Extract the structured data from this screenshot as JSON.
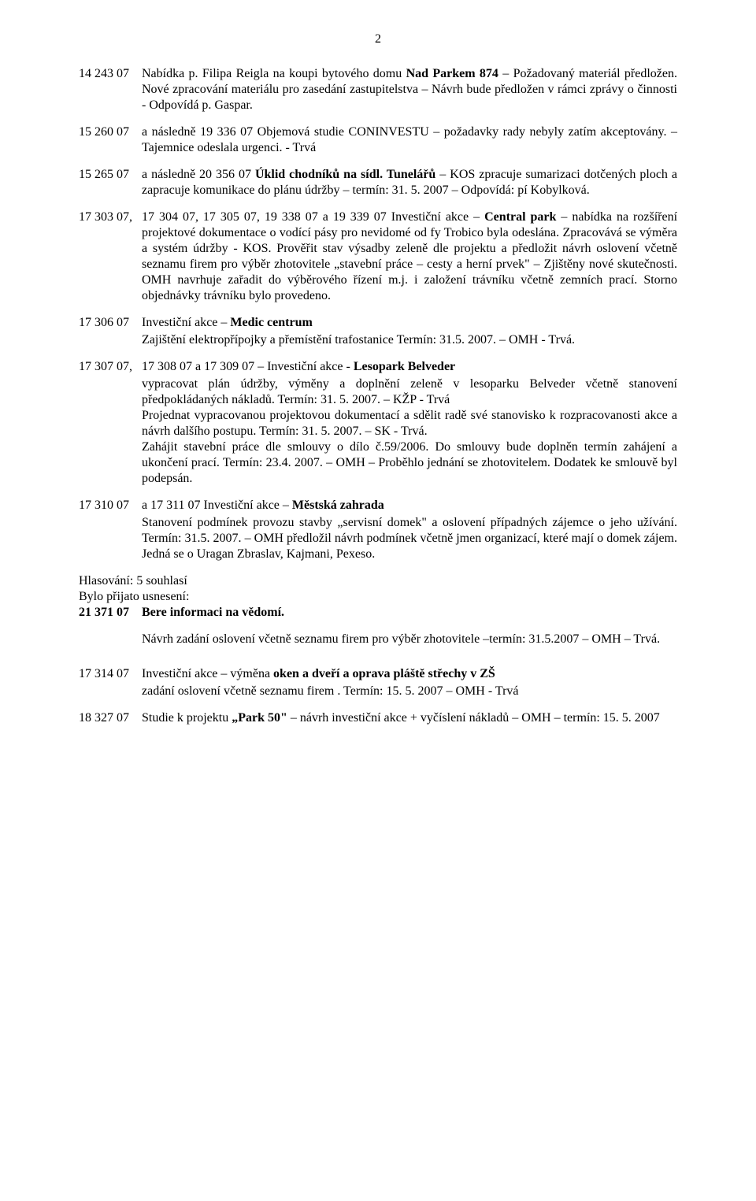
{
  "page_number": "2",
  "entries": [
    {
      "code": "14 243 07",
      "body": "Nabídka p. Filipa Reigla na koupi bytového domu <strong>Nad Parkem 874</strong> – Požadovaný materiál předložen. Nové zpracování materiálu pro zasedání zastupitelstva – Návrh bude předložen v rámci zprávy o činnosti - Odpovídá p. Gaspar."
    },
    {
      "code": "15 260 07",
      "body": "a následně 19 336 07 Objemová studie CONINVESTU – požadavky rady nebyly zatím akceptovány. – Tajemnice odeslala urgenci. - Trvá"
    },
    {
      "code": "15 265 07",
      "body": "a následně 20 356 07 <strong>Úklid chodníků na sídl. Tunelářů</strong> – KOS zpracuje sumarizaci dotčených ploch a zapracuje komunikace do plánu údržby – termín: 31. 5. 2007 – Odpovídá: pí Kobylková."
    },
    {
      "code": "17 303 07,",
      "body": "17 304 07, 17 305 07, 19 338 07 a 19 339 07 Investiční akce – <strong>Central park</strong> – nabídka na rozšíření projektové dokumentace o vodící pásy pro nevidomé od fy Trobico byla odeslána. Zpracovává se výměra a systém údržby - KOS. Prověřit stav výsadby zeleně dle projektu a předložit návrh oslovení včetně seznamu firem pro výběr zhotovitele „stavební práce – cesty a herní prvek\" – Zjištěny nové skutečnosti. OMH navrhuje zařadit do  výběrového řízení m.j. i založení trávníku včetně zemních prací. Storno objednávky trávníku bylo provedeno."
    },
    {
      "code": "17 306 07",
      "body": "Investiční akce – <strong>Medic centrum</strong>",
      "sub": "Zajištění elektropřípojky a přemístění trafostanice Termín: 31.5. 2007. – OMH - Trvá."
    },
    {
      "code": "17 307 07,",
      "body": "17 308 07 a 17 309 07 – Investiční akce -  <strong>Lesopark Belveder</strong>",
      "sub": "vypracovat plán údržby, výměny a doplnění zeleně v lesoparku Belveder včetně stanovení předpokládaných nákladů. Termín: 31. 5. 2007. – KŽP - Trvá<br>Projednat vypracovanou projektovou dokumentací a sdělit radě své stanovisko k rozpracovanosti akce a návrh dalšího postupu. Termín: 31. 5. 2007. – SK - Trvá.<br>Zahájit stavební práce dle smlouvy o dílo č.59/2006. Do smlouvy bude doplněn termín zahájení a ukončení prací.  Termín: 23.4. 2007. – OMH – Proběhlo jednání se zhotovitelem. Dodatek ke smlouvě byl podepsán."
    },
    {
      "code": "17 310 07",
      "body": " a 17 311 07  Investiční akce – <strong>Městská zahrada</strong>",
      "sub": "Stanovení podmínek provozu  stavby „servisní domek\" a oslovení případných zájemce o jeho užívání. Termín: 31.5. 2007. – OMH předložil návrh podmínek včetně jmen organizací, které mají o domek zájem. Jedná se o Uragan Zbraslav, Kajmani, Pexeso."
    }
  ],
  "vote_line": "Hlasování: 5 souhlasí",
  "adopted_line": "Bylo přijato usnesení:",
  "resolution": {
    "code": "21 371 07",
    "body": "Bere informaci na vědomí."
  },
  "resolution_sub": "Návrh zadání oslovení včetně seznamu firem pro výběr zhotovitele –termín: 31.5.2007 – OMH – Trvá.",
  "tail_entries": [
    {
      "code": "17 314 07",
      "body": "Investiční akce – výměna <strong>oken a dveří a oprava pláště střechy v ZŠ</strong>",
      "sub": "zadání oslovení včetně seznamu firem . Termín: 15. 5. 2007 – OMH - Trvá"
    },
    {
      "code": "18 327 07",
      "body": "Studie k projektu <strong>„Park 50\"</strong> – návrh investiční akce + vyčíslení nákladů – OMH – termín: 15. 5. 2007"
    }
  ]
}
